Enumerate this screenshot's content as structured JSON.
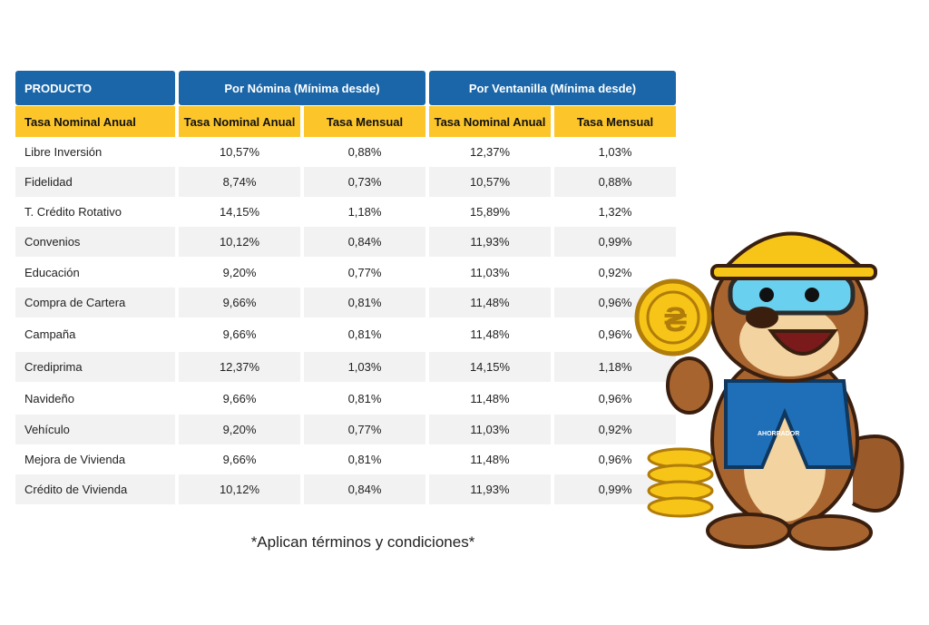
{
  "table": {
    "header": {
      "product": "PRODUCTO",
      "nomina": "Por Nómina (Mínima desde)",
      "ventanilla": "Por Ventanilla (Mínima desde)"
    },
    "subheader": [
      "Tasa Nominal Anual",
      "Tasa Nominal Anual",
      "Tasa Mensual",
      "Tasa Nominal Anual",
      "Tasa Mensual"
    ],
    "rows": [
      [
        "Libre Inversión",
        "10,57%",
        "0,88%",
        "12,37%",
        "1,03%"
      ],
      [
        "Fidelidad",
        "8,74%",
        "0,73%",
        "10,57%",
        "0,88%"
      ],
      [
        "T. Crédito Rotativo",
        "14,15%",
        "1,18%",
        "15,89%",
        "1,32%"
      ],
      [
        "Convenios",
        "10,12%",
        "0,84%",
        "11,93%",
        "0,99%"
      ],
      [
        "Educación",
        "9,20%",
        "0,77%",
        "11,03%",
        "0,92%"
      ],
      [
        "Compra de Cartera",
        "9,66%",
        "0,81%",
        "11,48%",
        "0,96%"
      ],
      [
        "Campaña",
        "9,66%",
        "0,81%",
        "11,48%",
        "0,96%"
      ],
      [
        "Crediprima",
        "12,37%",
        "1,03%",
        "14,15%",
        "1,18%"
      ],
      [
        "Navideño",
        "9,66%",
        "0,81%",
        "11,48%",
        "0,96%"
      ],
      [
        "Vehículo",
        "9,20%",
        "0,77%",
        "11,03%",
        "0,92%"
      ],
      [
        "Mejora de Vivienda",
        "9,66%",
        "0,81%",
        "11,48%",
        "0,96%"
      ],
      [
        "Crédito de Vivienda",
        "10,12%",
        "0,84%",
        "11,93%",
        "0,99%"
      ]
    ]
  },
  "footnote": "*Aplican términos y condiciones*",
  "colors": {
    "header_blue": "#1a66a8",
    "subheader_yellow": "#fcc52a",
    "row_alt": "#f2f2f2"
  },
  "mascot": {
    "icon": "otter-mascot-with-coin",
    "vest_text": "AHORRADOR"
  }
}
